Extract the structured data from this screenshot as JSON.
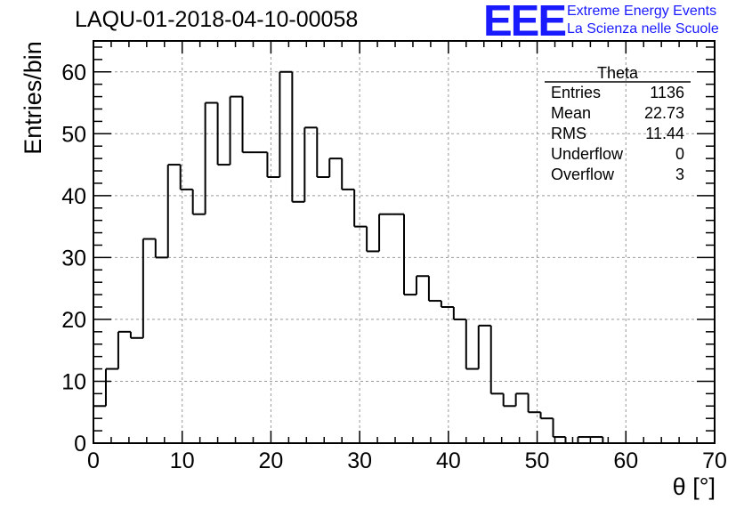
{
  "run_title": "LAQU-01-2018-04-10-00058",
  "logo": {
    "mark": "EEE",
    "line1": "Extreme Energy Events",
    "line2": "La Scienza nelle Scuole",
    "color": "#1a1aff"
  },
  "stats": {
    "title": "Theta",
    "rows": [
      {
        "label": "Entries",
        "value": "1136"
      },
      {
        "label": "Mean",
        "value": "22.73"
      },
      {
        "label": "RMS",
        "value": "11.44"
      },
      {
        "label": "Underflow",
        "value": "0"
      },
      {
        "label": "Overflow",
        "value": "3"
      }
    ]
  },
  "chart_data": {
    "type": "bar",
    "style": "step-histogram",
    "xlabel": "θ [°]",
    "ylabel": "Entries/bin",
    "xlim": [
      0,
      70
    ],
    "ylim": [
      0,
      65
    ],
    "bin_width": 1.4,
    "x_ticks": [
      0,
      10,
      20,
      30,
      40,
      50,
      60,
      70
    ],
    "y_ticks": [
      0,
      10,
      20,
      30,
      40,
      50,
      60
    ],
    "grid": true,
    "values": [
      6,
      12,
      18,
      17,
      33,
      30,
      45,
      41,
      37,
      55,
      45,
      56,
      47,
      47,
      43,
      60,
      39,
      51,
      43,
      46,
      41,
      35,
      31,
      37,
      37,
      24,
      27,
      23,
      22,
      20,
      12,
      19,
      8,
      6,
      8,
      5,
      4,
      1,
      0,
      1,
      1,
      0,
      0,
      0,
      0,
      0,
      0,
      0,
      0,
      0
    ]
  }
}
